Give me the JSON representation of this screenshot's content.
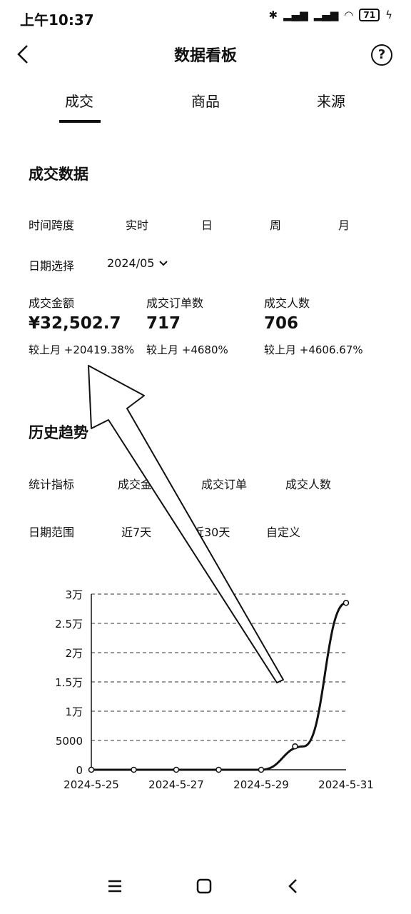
{
  "status": {
    "time": "上午10:37",
    "battery": "71"
  },
  "header": {
    "title": "数据看板",
    "help": "?"
  },
  "tabs": [
    {
      "label": "成交"
    },
    {
      "label": "商品"
    },
    {
      "label": "来源"
    }
  ],
  "deal_section": {
    "title": "成交数据",
    "time_span_label": "时间跨度",
    "time_span_options": [
      "实时",
      "日",
      "周",
      "月"
    ],
    "date_label": "日期选择",
    "date_value": "2024/05"
  },
  "metrics": [
    {
      "label": "成交金额",
      "value": "¥32,502.7",
      "change": "较上月 +20419.38%"
    },
    {
      "label": "成交订单数",
      "value": "717",
      "change": "较上月 +4680%"
    },
    {
      "label": "成交人数",
      "value": "706",
      "change": "较上月 +4606.67%"
    }
  ],
  "history_section": {
    "title": "历史趋势",
    "indicator_label": "统计指标",
    "indicator_options": [
      "成交金额",
      "成交订单",
      "成交人数"
    ],
    "range_label": "日期范围",
    "range_options": [
      "近7天",
      "近30天",
      "自定义"
    ]
  },
  "chart_data": {
    "type": "line",
    "x": [
      "2024-5-25",
      "2024-5-26",
      "2024-5-27",
      "2024-5-28",
      "2024-5-29",
      "2024-5-30",
      "2024-5-31"
    ],
    "values": [
      0,
      0,
      0,
      0,
      0,
      4000,
      28500
    ],
    "x_tick_labels": [
      "2024-5-25",
      "2024-5-27",
      "2024-5-29",
      "2024-5-31"
    ],
    "y_ticks": [
      0,
      5000,
      10000,
      15000,
      20000,
      25000,
      30000
    ],
    "y_tick_labels": [
      "0",
      "5000",
      "1万",
      "1.5万",
      "2万",
      "2.5万",
      "3万"
    ],
    "ylim": [
      0,
      30000
    ],
    "grid": true
  }
}
